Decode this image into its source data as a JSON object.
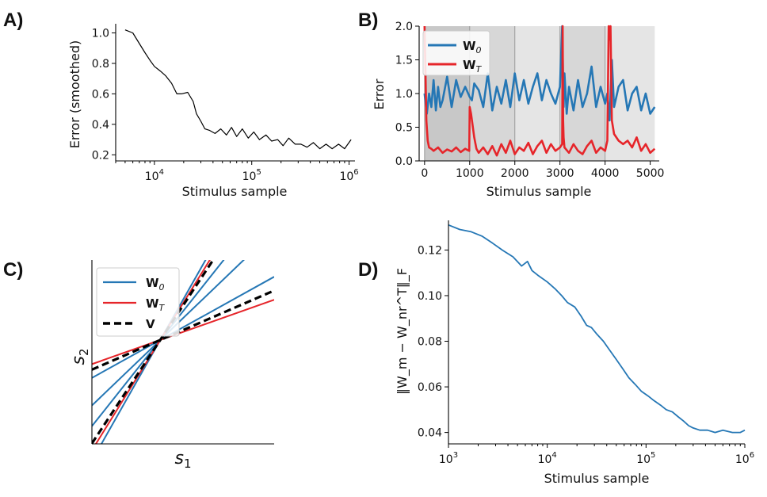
{
  "colors": {
    "blue": "#2577b5",
    "red": "#e6252a",
    "black": "#000000",
    "shade_dark": "#c8c8c8",
    "shade_mid": "#d7d7d7",
    "shade_light": "#e5e5e5"
  },
  "panels": {
    "A": {
      "label": "A)"
    },
    "B": {
      "label": "B)"
    },
    "C": {
      "label": "C)"
    },
    "D": {
      "label": "D)"
    }
  },
  "chart_data": [
    {
      "id": "A",
      "type": "line",
      "xscale": "log",
      "xlabel": "Stimulus sample",
      "ylabel": "Error (smoothed)",
      "xlim": [
        4000,
        1150000
      ],
      "ylim": [
        0.16,
        1.06
      ],
      "xticks": [
        {
          "label_base": "10",
          "label_exp": "4",
          "value": 10000
        },
        {
          "label_base": "10",
          "label_exp": "5",
          "value": 100000
        },
        {
          "label_base": "10",
          "label_exp": "6",
          "value": 1000000
        }
      ],
      "yticks": [
        "0.2",
        "0.4",
        "0.6",
        "0.8",
        "1.0"
      ],
      "ytick_values": [
        0.2,
        0.4,
        0.6,
        0.8,
        1.0
      ],
      "series": [
        {
          "name": "error",
          "color": "#000000",
          "x": [
            5000,
            6000,
            7000,
            8000,
            9000,
            10000,
            11500,
            13000,
            15000,
            17000,
            19000,
            22000,
            25000,
            27000,
            30000,
            33000,
            37000,
            42000,
            48000,
            55000,
            62000,
            70000,
            80000,
            92000,
            105000,
            120000,
            140000,
            160000,
            185000,
            210000,
            240000,
            280000,
            320000,
            370000,
            430000,
            500000,
            580000,
            670000,
            780000,
            900000,
            1050000
          ],
          "y": [
            1.02,
            1.0,
            0.93,
            0.87,
            0.82,
            0.78,
            0.75,
            0.72,
            0.67,
            0.6,
            0.6,
            0.61,
            0.55,
            0.47,
            0.42,
            0.37,
            0.36,
            0.34,
            0.37,
            0.33,
            0.38,
            0.32,
            0.37,
            0.31,
            0.35,
            0.3,
            0.33,
            0.29,
            0.3,
            0.26,
            0.31,
            0.27,
            0.27,
            0.25,
            0.28,
            0.24,
            0.27,
            0.24,
            0.27,
            0.24,
            0.3
          ]
        }
      ]
    },
    {
      "id": "B",
      "type": "line",
      "xlabel": "Stimulus sample",
      "ylabel": "Error",
      "xlim": [
        -120,
        5200
      ],
      "ylim": [
        0.0,
        2.0
      ],
      "xticks": [
        "0",
        "1000",
        "2000",
        "3000",
        "4000",
        "5000"
      ],
      "xtick_values": [
        0,
        1000,
        2000,
        3000,
        4000,
        5000
      ],
      "yticks": [
        "0.0",
        "0.5",
        "1.0",
        "1.5",
        "2.0"
      ],
      "ytick_values": [
        0.0,
        0.5,
        1.0,
        1.5,
        2.0
      ],
      "shaded_regions": [
        [
          0,
          1000
        ],
        [
          1000,
          2000
        ],
        [
          2000,
          3000
        ],
        [
          3000,
          4000
        ],
        [
          4000,
          5100
        ]
      ],
      "legend": [
        {
          "base": "W",
          "sub": "0",
          "color": "#2577b5"
        },
        {
          "base": "W",
          "sub": "T",
          "color": "#e6252a"
        }
      ],
      "series": [
        {
          "name": "W0",
          "color": "#2577b5",
          "x": [
            0,
            50,
            100,
            150,
            200,
            250,
            300,
            350,
            400,
            500,
            600,
            700,
            800,
            900,
            1000,
            1050,
            1100,
            1200,
            1300,
            1400,
            1500,
            1600,
            1700,
            1800,
            1900,
            2000,
            2100,
            2200,
            2300,
            2400,
            2500,
            2600,
            2700,
            2800,
            2900,
            3000,
            3050,
            3080,
            3100,
            3150,
            3200,
            3300,
            3400,
            3500,
            3600,
            3700,
            3800,
            3900,
            4000,
            4050,
            4100,
            4150,
            4200,
            4300,
            4400,
            4500,
            4600,
            4700,
            4800,
            4900,
            5000,
            5100
          ],
          "y": [
            1.0,
            0.7,
            1.0,
            0.8,
            1.2,
            0.75,
            1.1,
            0.8,
            0.9,
            1.25,
            0.8,
            1.2,
            0.95,
            1.1,
            0.95,
            0.9,
            1.15,
            1.05,
            0.8,
            1.3,
            0.75,
            1.1,
            0.85,
            1.2,
            0.8,
            1.3,
            0.9,
            1.2,
            0.85,
            1.1,
            1.3,
            0.9,
            1.2,
            1.0,
            0.85,
            1.1,
            2.0,
            0.8,
            1.3,
            0.7,
            1.1,
            0.75,
            1.2,
            0.8,
            1.0,
            1.4,
            0.8,
            1.1,
            0.85,
            1.0,
            0.6,
            1.5,
            0.8,
            1.1,
            1.2,
            0.75,
            1.0,
            1.1,
            0.75,
            1.0,
            0.7,
            0.8
          ]
        },
        {
          "name": "WT",
          "color": "#e6252a",
          "x": [
            0,
            20,
            40,
            70,
            100,
            150,
            200,
            300,
            400,
            500,
            600,
            700,
            800,
            900,
            990,
            1000,
            1030,
            1100,
            1150,
            1200,
            1300,
            1400,
            1500,
            1600,
            1700,
            1800,
            1900,
            2000,
            2100,
            2200,
            2300,
            2400,
            2500,
            2600,
            2700,
            2800,
            2900,
            3000,
            3050,
            3060,
            3070,
            3080,
            3100,
            3200,
            3300,
            3400,
            3500,
            3600,
            3700,
            3800,
            3900,
            4000,
            4050,
            4080,
            4100,
            4120,
            4150,
            4200,
            4300,
            4400,
            4500,
            4600,
            4700,
            4800,
            4900,
            5000,
            5100
          ],
          "y": [
            2.0,
            1.3,
            0.6,
            0.3,
            0.2,
            0.18,
            0.15,
            0.2,
            0.12,
            0.17,
            0.14,
            0.2,
            0.13,
            0.18,
            0.15,
            0.8,
            0.7,
            0.35,
            0.18,
            0.12,
            0.2,
            0.1,
            0.22,
            0.08,
            0.25,
            0.12,
            0.3,
            0.1,
            0.2,
            0.15,
            0.27,
            0.1,
            0.22,
            0.3,
            0.12,
            0.25,
            0.15,
            0.2,
            0.25,
            2.0,
            0.6,
            0.35,
            0.2,
            0.12,
            0.25,
            0.15,
            0.1,
            0.22,
            0.3,
            0.12,
            0.2,
            0.15,
            0.3,
            2.0,
            1.8,
            2.0,
            0.6,
            0.4,
            0.3,
            0.25,
            0.3,
            0.2,
            0.35,
            0.15,
            0.25,
            0.12,
            0.18
          ]
        }
      ]
    },
    {
      "id": "C",
      "type": "line",
      "xlabel_base": "s",
      "xlabel_sub": "1",
      "ylabel_base": "s",
      "ylabel_sub": "2",
      "xlim": [
        -1.0,
        1.0
      ],
      "ylim": [
        -1.0,
        1.0
      ],
      "legend": [
        {
          "base": "W",
          "sub": "0",
          "color": "#2577b5",
          "style": "solid"
        },
        {
          "base": "W",
          "sub": "T",
          "color": "#e6252a",
          "style": "solid"
        },
        {
          "base": "V",
          "sub": "",
          "color": "#000000",
          "style": "dashed"
        }
      ],
      "lines_through_center": [
        {
          "group": "W0",
          "color": "#2577b5",
          "dash": false,
          "slope": 0.55
        },
        {
          "group": "W0",
          "color": "#2577b5",
          "dash": false,
          "slope": 0.95
        },
        {
          "group": "W0",
          "color": "#2577b5",
          "dash": false,
          "slope": 1.25
        },
        {
          "group": "W0",
          "color": "#2577b5",
          "dash": false,
          "slope": 1.75
        },
        {
          "group": "WT",
          "color": "#e6252a",
          "dash": false,
          "slope": 0.35
        },
        {
          "group": "WT",
          "color": "#e6252a",
          "dash": false,
          "slope": 1.6
        },
        {
          "group": "V",
          "color": "#000000",
          "dash": true,
          "slope": 0.43
        },
        {
          "group": "V",
          "color": "#000000",
          "dash": true,
          "slope": 1.5
        }
      ],
      "center": [
        -0.25,
        0.13
      ]
    },
    {
      "id": "D",
      "type": "line",
      "xscale": "log",
      "xlabel": "Stimulus sample",
      "ylabel_text": "‖W_m − W_nr^T‖_F",
      "xlim": [
        1000,
        1000000
      ],
      "ylim": [
        0.035,
        0.133
      ],
      "xticks": [
        {
          "label_base": "10",
          "label_exp": "3",
          "value": 1000
        },
        {
          "label_base": "10",
          "label_exp": "4",
          "value": 10000
        },
        {
          "label_base": "10",
          "label_exp": "5",
          "value": 100000
        },
        {
          "label_base": "10",
          "label_exp": "6",
          "value": 1000000
        }
      ],
      "yticks": [
        "0.04",
        "0.06",
        "0.08",
        "0.10",
        "0.12"
      ],
      "ytick_values": [
        0.04,
        0.06,
        0.08,
        0.1,
        0.12
      ],
      "series": [
        {
          "name": "norm",
          "color": "#2577b5",
          "x": [
            1000,
            1300,
            1700,
            2200,
            2800,
            3500,
            4500,
            5500,
            6300,
            7000,
            8000,
            10000,
            12000,
            14000,
            16000,
            19000,
            22000,
            25000,
            28000,
            32000,
            37000,
            43000,
            50000,
            58000,
            67000,
            78000,
            90000,
            105000,
            120000,
            140000,
            160000,
            185000,
            210000,
            240000,
            270000,
            300000,
            350000,
            420000,
            500000,
            600000,
            750000,
            900000,
            1000000
          ],
          "y": [
            0.131,
            0.129,
            0.128,
            0.126,
            0.123,
            0.12,
            0.117,
            0.113,
            0.115,
            0.111,
            0.109,
            0.106,
            0.103,
            0.1,
            0.097,
            0.095,
            0.091,
            0.087,
            0.086,
            0.083,
            0.08,
            0.076,
            0.072,
            0.068,
            0.064,
            0.061,
            0.058,
            0.056,
            0.054,
            0.052,
            0.05,
            0.049,
            0.047,
            0.045,
            0.043,
            0.042,
            0.041,
            0.041,
            0.04,
            0.041,
            0.04,
            0.04,
            0.041
          ]
        }
      ]
    }
  ]
}
